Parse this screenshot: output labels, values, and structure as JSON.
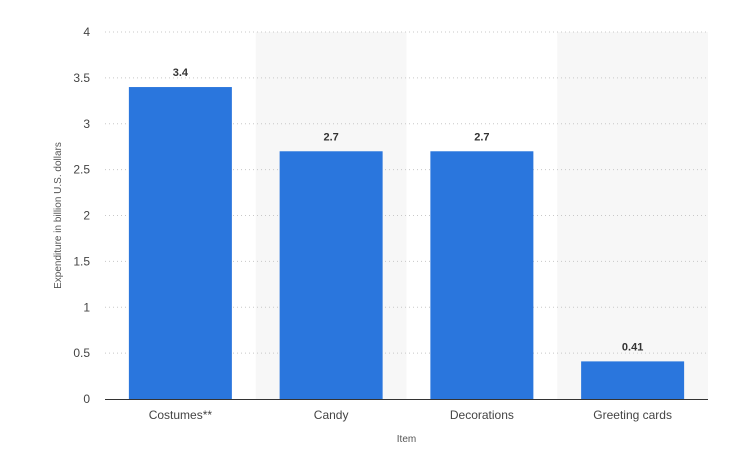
{
  "chart_data": {
    "type": "bar",
    "categories": [
      "Costumes**",
      "Candy",
      "Decorations",
      "Greeting cards"
    ],
    "values": [
      3.4,
      2.7,
      2.7,
      0.41
    ],
    "value_labels": [
      "3.4",
      "2.7",
      "2.7",
      "0.41"
    ],
    "title": "",
    "xlabel": "Item",
    "ylabel": "Expenditure in billion U.S. dollars",
    "ylim": [
      0,
      4
    ],
    "yticks": [
      0,
      0.5,
      1,
      1.5,
      2,
      2.5,
      3,
      3.5,
      4
    ],
    "ytick_labels": [
      "0",
      "0.5",
      "1",
      "1.5",
      "2",
      "2.5",
      "3",
      "3.5",
      "4"
    ],
    "grid": true,
    "legend": false,
    "bar_color": "#2a76dd"
  }
}
